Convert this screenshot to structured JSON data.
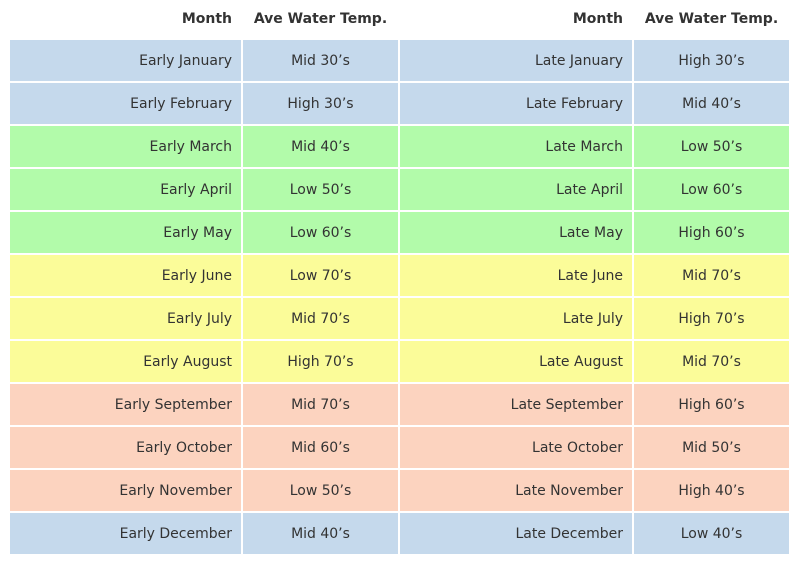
{
  "headers": {
    "month_left": "Month",
    "temp_left": "Ave Water Temp.",
    "month_right": "Month",
    "temp_right": "Ave Water Temp."
  },
  "season_colors": {
    "winter": "#c5d9ec",
    "spring": "#b2fbaa",
    "summer": "#fbfc99",
    "fall": "#fcd3bf"
  },
  "rows": [
    {
      "season": "winter",
      "early_month": "Early January",
      "early_temp": "Mid 30’s",
      "late_month": "Late January",
      "late_temp": "High 30’s"
    },
    {
      "season": "winter",
      "early_month": "Early February",
      "early_temp": "High 30’s",
      "late_month": "Late February",
      "late_temp": "Mid 40’s"
    },
    {
      "season": "spring",
      "early_month": "Early March",
      "early_temp": "Mid 40’s",
      "late_month": "Late March",
      "late_temp": "Low 50’s"
    },
    {
      "season": "spring",
      "early_month": "Early April",
      "early_temp": "Low 50’s",
      "late_month": "Late April",
      "late_temp": "Low 60’s"
    },
    {
      "season": "spring",
      "early_month": "Early May",
      "early_temp": "Low 60’s",
      "late_month": "Late May",
      "late_temp": "High 60’s"
    },
    {
      "season": "summer",
      "early_month": "Early June",
      "early_temp": "Low 70’s",
      "late_month": "Late June",
      "late_temp": "Mid 70’s"
    },
    {
      "season": "summer",
      "early_month": "Early July",
      "early_temp": "Mid 70’s",
      "late_month": "Late July",
      "late_temp": "High 70’s"
    },
    {
      "season": "summer",
      "early_month": "Early August",
      "early_temp": "High 70’s",
      "late_month": "Late August",
      "late_temp": "Mid 70’s"
    },
    {
      "season": "fall",
      "early_month": "Early September",
      "early_temp": "Mid 70’s",
      "late_month": "Late September",
      "late_temp": "High 60’s"
    },
    {
      "season": "fall",
      "early_month": "Early October",
      "early_temp": "Mid 60’s",
      "late_month": "Late October",
      "late_temp": "Mid 50’s"
    },
    {
      "season": "fall",
      "early_month": "Early November",
      "early_temp": "Low 50’s",
      "late_month": "Late November",
      "late_temp": "High 40’s"
    },
    {
      "season": "winter",
      "early_month": "Early December",
      "early_temp": "Mid 40’s",
      "late_month": "Late December",
      "late_temp": "Low 40’s"
    }
  ]
}
